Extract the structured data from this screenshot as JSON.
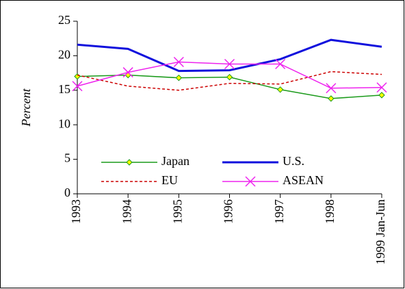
{
  "chart_data": {
    "type": "line",
    "y_label": "Percent",
    "categories": [
      "1993",
      "1994",
      "1995",
      "1996",
      "1997",
      "1998",
      "1999 Jan-Jun"
    ],
    "series": [
      {
        "name": "Japan",
        "color": "#1a9a1a",
        "marker": "diamond",
        "dash": false,
        "width": 1.5,
        "values": [
          17.0,
          17.2,
          16.8,
          16.9,
          15.1,
          13.8,
          14.3
        ]
      },
      {
        "name": "U.S.",
        "color": "#1010dd",
        "marker": "none",
        "dash": false,
        "width": 3,
        "values": [
          21.6,
          21.0,
          17.8,
          17.9,
          19.5,
          22.3,
          21.3
        ]
      },
      {
        "name": "EU",
        "color": "#cc0000",
        "marker": "none",
        "dash": true,
        "width": 1.5,
        "values": [
          17.2,
          15.6,
          15.0,
          16.0,
          15.9,
          17.7,
          17.3
        ]
      },
      {
        "name": "ASEAN",
        "color": "#ee22ee",
        "marker": "x",
        "dash": false,
        "width": 1.5,
        "values": [
          15.6,
          17.6,
          19.1,
          18.8,
          18.8,
          15.3,
          15.4
        ]
      }
    ],
    "ylim": [
      0,
      25
    ],
    "yticks": [
      0,
      5,
      10,
      15,
      20,
      25
    ],
    "grid": false
  }
}
